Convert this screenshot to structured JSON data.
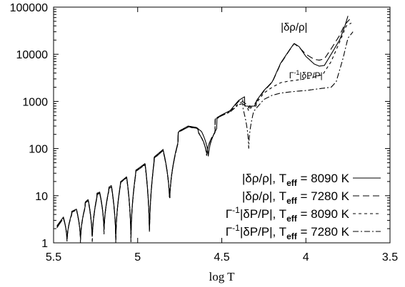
{
  "chart_data": {
    "type": "line",
    "title": "",
    "xlabel": "log T",
    "ylabel": "",
    "xlim": [
      5.5,
      3.5
    ],
    "ylim": [
      1,
      100000
    ],
    "yscale": "log",
    "x_reversed": true,
    "grid": false,
    "legend_position": "bottom-right",
    "x_ticks": [
      {
        "value": 5.5,
        "label": "5.5"
      },
      {
        "value": 5,
        "label": "5"
      },
      {
        "value": 4.5,
        "label": "4.5"
      },
      {
        "value": 4,
        "label": "4"
      },
      {
        "value": 3.5,
        "label": "3.5"
      }
    ],
    "y_ticks": [
      {
        "value": 1,
        "label": "1"
      },
      {
        "value": 10,
        "label": "10"
      },
      {
        "value": 100,
        "label": "100"
      },
      {
        "value": 1000,
        "label": "1000"
      },
      {
        "value": 10000,
        "label": "10000"
      },
      {
        "value": 100000,
        "label": "100000"
      }
    ],
    "legend": [
      {
        "label": "|δρ/ρ|, T",
        "sub": "eff",
        "value": " = 8090 K",
        "prefix": "",
        "prefix_sup": "",
        "dash": "solid"
      },
      {
        "label": "|δρ/ρ|, T",
        "sub": "eff",
        "value": " = 7280 K",
        "prefix": "",
        "prefix_sup": "",
        "dash": "longdash"
      },
      {
        "label": "|δP/P|, T",
        "sub": "eff",
        "value": " = 8090 K",
        "prefix": "Γ",
        "prefix_sup": "-1",
        "dash": "shortdash"
      },
      {
        "label": "|δP/P|, T",
        "sub": "eff",
        "value": " = 7280 K",
        "prefix": "Γ",
        "prefix_sup": "-1",
        "dash": "dashdot"
      }
    ],
    "annotations": [
      {
        "text": "|δρ/ρ|",
        "x": 4.07,
        "y": 32000
      },
      {
        "prefix": "Γ",
        "sup": "-1",
        "text": "|δP/P|",
        "x": 4.0,
        "y": 3100
      }
    ],
    "series": [
      {
        "style": "solid",
        "envelope": [
          [
            5.48,
            2.3
          ],
          [
            5.45,
            3.2
          ],
          [
            5.43,
            4.0
          ],
          [
            5.4,
            4.5
          ],
          [
            5.35,
            5.5
          ],
          [
            5.3,
            8.0
          ],
          [
            5.25,
            11
          ],
          [
            5.2,
            13
          ],
          [
            5.15,
            17
          ],
          [
            5.1,
            20
          ],
          [
            5.05,
            28
          ],
          [
            5.0,
            37
          ],
          [
            4.95,
            50
          ],
          [
            4.9,
            67
          ],
          [
            4.85,
            95
          ],
          [
            4.8,
            150
          ],
          [
            4.75,
            240
          ],
          [
            4.7,
            300
          ],
          [
            4.65,
            280
          ],
          [
            4.6,
            200
          ],
          [
            4.55,
            410
          ],
          [
            4.5,
            520
          ],
          [
            4.45,
            640
          ],
          [
            4.4,
            1050
          ],
          [
            4.35,
            1350
          ],
          [
            4.33,
            800
          ],
          [
            4.31,
            860
          ],
          [
            4.25,
            1700
          ],
          [
            4.2,
            2600
          ],
          [
            4.15,
            6500
          ],
          [
            4.1,
            12000
          ],
          [
            4.07,
            17000
          ],
          [
            4.04,
            14500
          ],
          [
            4.0,
            9000
          ],
          [
            3.95,
            6200
          ],
          [
            3.92,
            5600
          ],
          [
            3.89,
            5800
          ],
          [
            3.85,
            10000
          ],
          [
            3.8,
            20000
          ],
          [
            3.77,
            38000
          ],
          [
            3.75,
            65000
          ]
        ],
        "minima": [
          5.42,
          5.34,
          5.27,
          5.2,
          5.13,
          5.04,
          4.93,
          4.81,
          4.58,
          4.33
        ],
        "min_values": [
          1.0,
          1.0,
          1.0,
          1.5,
          1.0,
          1.0,
          1.2,
          6,
          60,
          780
        ]
      },
      {
        "style": "longdash",
        "envelope": [
          [
            5.48,
            2.2
          ],
          [
            5.45,
            3.1
          ],
          [
            5.43,
            3.9
          ],
          [
            5.4,
            4.4
          ],
          [
            5.35,
            5.4
          ],
          [
            5.3,
            7.8
          ],
          [
            5.25,
            10.5
          ],
          [
            5.2,
            12.5
          ],
          [
            5.15,
            16
          ],
          [
            5.1,
            19.5
          ],
          [
            5.05,
            27
          ],
          [
            5.0,
            36
          ],
          [
            4.95,
            48
          ],
          [
            4.9,
            64
          ],
          [
            4.85,
            92
          ],
          [
            4.8,
            145
          ],
          [
            4.75,
            235
          ],
          [
            4.7,
            290
          ],
          [
            4.65,
            275
          ],
          [
            4.6,
            195
          ],
          [
            4.55,
            400
          ],
          [
            4.5,
            510
          ],
          [
            4.45,
            630
          ],
          [
            4.4,
            1000
          ],
          [
            4.35,
            1250
          ],
          [
            4.33,
            770
          ],
          [
            4.31,
            830
          ],
          [
            4.25,
            1650
          ],
          [
            4.2,
            2550
          ],
          [
            4.15,
            6300
          ],
          [
            4.1,
            11800
          ],
          [
            4.07,
            16800
          ],
          [
            4.04,
            14000
          ],
          [
            4.0,
            10000
          ],
          [
            3.95,
            7800
          ],
          [
            3.92,
            7500
          ],
          [
            3.89,
            8000
          ],
          [
            3.85,
            13000
          ],
          [
            3.8,
            25000
          ],
          [
            3.77,
            42000
          ],
          [
            3.74,
            55000
          ]
        ],
        "minima": [
          5.42,
          5.34,
          5.27,
          5.2,
          5.13,
          5.04,
          4.93,
          4.81,
          4.59,
          4.34
        ],
        "min_values": [
          1.0,
          1.0,
          1.0,
          1.5,
          1.0,
          1.0,
          1.2,
          6,
          65,
          700
        ]
      },
      {
        "style": "shortdash",
        "envelope": [
          [
            5.48,
            2.1
          ],
          [
            5.45,
            3.0
          ],
          [
            5.43,
            3.8
          ],
          [
            5.4,
            4.3
          ],
          [
            5.35,
            5.3
          ],
          [
            5.3,
            7.6
          ],
          [
            5.25,
            10.3
          ],
          [
            5.2,
            12.3
          ],
          [
            5.15,
            15.8
          ],
          [
            5.1,
            19.2
          ],
          [
            5.05,
            26.5
          ],
          [
            5.0,
            35
          ],
          [
            4.95,
            47
          ],
          [
            4.9,
            63
          ],
          [
            4.85,
            90
          ],
          [
            4.8,
            142
          ],
          [
            4.75,
            230
          ],
          [
            4.7,
            285
          ],
          [
            4.65,
            270
          ],
          [
            4.6,
            190
          ],
          [
            4.55,
            390
          ],
          [
            4.5,
            500
          ],
          [
            4.45,
            600
          ],
          [
            4.4,
            900
          ],
          [
            4.35,
            1100
          ],
          [
            4.33,
            720
          ],
          [
            4.31,
            780
          ],
          [
            4.25,
            1500
          ],
          [
            4.2,
            2000
          ],
          [
            4.15,
            2500
          ],
          [
            4.1,
            2700
          ],
          [
            4.05,
            2850
          ],
          [
            4.0,
            3000
          ],
          [
            3.95,
            3300
          ],
          [
            3.9,
            3700
          ],
          [
            3.85,
            7000
          ],
          [
            3.8,
            18000
          ],
          [
            3.76,
            40000
          ],
          [
            3.73,
            46000
          ]
        ],
        "minima": [
          5.42,
          5.34,
          5.27,
          5.2,
          5.13,
          5.04,
          4.93,
          4.81,
          4.59,
          4.34
        ],
        "min_values": [
          1.0,
          1.0,
          1.0,
          1.5,
          1.0,
          1.0,
          1.2,
          6,
          65,
          600
        ]
      },
      {
        "style": "dashdot",
        "envelope": [
          [
            5.48,
            2.1
          ],
          [
            5.45,
            3.0
          ],
          [
            5.43,
            3.8
          ],
          [
            5.4,
            4.3
          ],
          [
            5.35,
            5.3
          ],
          [
            5.3,
            7.6
          ],
          [
            5.25,
            10.3
          ],
          [
            5.2,
            12.3
          ],
          [
            5.15,
            15.8
          ],
          [
            5.1,
            19.2
          ],
          [
            5.05,
            26.5
          ],
          [
            5.0,
            35
          ],
          [
            4.95,
            47
          ],
          [
            4.9,
            63
          ],
          [
            4.85,
            90
          ],
          [
            4.8,
            142
          ],
          [
            4.75,
            230
          ],
          [
            4.7,
            285
          ],
          [
            4.65,
            270
          ],
          [
            4.6,
            190
          ],
          [
            4.55,
            390
          ],
          [
            4.5,
            500
          ],
          [
            4.45,
            600
          ],
          [
            4.4,
            850
          ],
          [
            4.35,
            950
          ],
          [
            4.33,
            550
          ],
          [
            4.31,
            620
          ],
          [
            4.25,
            1100
          ],
          [
            4.2,
            1350
          ],
          [
            4.15,
            1500
          ],
          [
            4.1,
            1580
          ],
          [
            4.05,
            1650
          ],
          [
            4.0,
            1700
          ],
          [
            3.95,
            1800
          ],
          [
            3.9,
            1900
          ],
          [
            3.85,
            2000
          ],
          [
            3.82,
            2600
          ],
          [
            3.78,
            8000
          ],
          [
            3.75,
            22000
          ],
          [
            3.72,
            30000
          ]
        ],
        "minima": [
          5.42,
          5.34,
          5.27,
          5.2,
          5.13,
          5.04,
          4.93,
          4.81,
          4.59,
          4.34
        ],
        "min_values": [
          1.0,
          1.0,
          1.0,
          1.5,
          1.0,
          1.0,
          1.2,
          6,
          65,
          90
        ]
      }
    ]
  }
}
